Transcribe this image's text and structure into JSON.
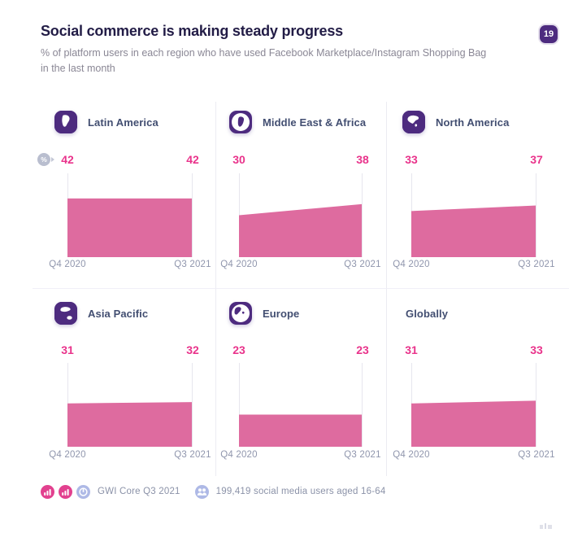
{
  "header": {
    "title": "Social commerce is making steady progress",
    "subtitle": "% of platform users in each region who have used Facebook Marketplace/Instagram Shopping Bag in the last month",
    "page_number": "19"
  },
  "chart_data": {
    "type": "area",
    "title": "Social commerce is making steady progress",
    "subtitle": "% of platform users in each region who have used Facebook Marketplace/Instagram Shopping Bag in the last month",
    "unit": "%",
    "categories": [
      "Q4 2020",
      "Q3 2021"
    ],
    "ylim": [
      0,
      60
    ],
    "grid": false,
    "legend": "none",
    "layout": "2 rows x 3 columns of small multiples, start and end values labeled above each area",
    "series": [
      {
        "name": "Latin America",
        "values": [
          42,
          42
        ]
      },
      {
        "name": "Middle East & Africa",
        "values": [
          30,
          38
        ]
      },
      {
        "name": "North America",
        "values": [
          33,
          37
        ]
      },
      {
        "name": "Asia Pacific",
        "values": [
          31,
          32
        ]
      },
      {
        "name": "Europe",
        "values": [
          23,
          23
        ]
      },
      {
        "name": "Globally",
        "values": [
          31,
          33
        ]
      }
    ]
  },
  "percent_badge": "%",
  "footer": {
    "source": "GWI Core Q3 2021",
    "audience": "199,419 social media users aged 16-64"
  },
  "icons": {
    "region": [
      "latin-america-globe",
      "middle-east-africa-globe",
      "north-america-globe",
      "asia-pacific-globe",
      "europe-globe",
      null
    ],
    "footer": [
      "bar-chart-badge",
      "bar-chart-badge",
      "gwi-logo",
      "audience-people"
    ],
    "value_marker": "percent-arrow-badge"
  },
  "colors": {
    "area_pink": "#DE6B9F",
    "value_pink": "#E9338B",
    "icon_purple": "#4D2B7F",
    "badge_purple": "#4D2B7F",
    "footer_pink": "#E2418F",
    "footer_blue": "#AEB9E6",
    "title_navy": "#221C46",
    "region_slate": "#424E71",
    "axis_gray": "#9096AD",
    "divider": "#ECECF2"
  }
}
